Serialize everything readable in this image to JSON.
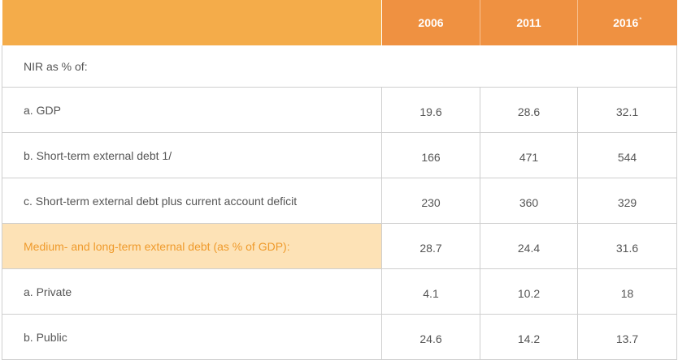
{
  "table": {
    "columns": [
      "2006",
      "2011",
      "2016"
    ],
    "last_column_footnote_mark": "*",
    "section_heading": "NIR as % of:",
    "rows": [
      {
        "label": "a. GDP",
        "values": [
          "19.6",
          "28.6",
          "32.1"
        ]
      },
      {
        "label": "b. Short-term external debt 1/",
        "values": [
          "166",
          "471",
          "544"
        ]
      },
      {
        "label": "c. Short-term external debt plus current account deficit",
        "values": [
          "230",
          "360",
          "329"
        ]
      },
      {
        "label": "Medium- and long-term external debt (as % of GDP):",
        "values": [
          "28.7",
          "24.4",
          "31.6"
        ],
        "highlight": true
      },
      {
        "label": "a. Private",
        "values": [
          "4.1",
          "10.2",
          "18"
        ]
      },
      {
        "label": "b. Public",
        "values": [
          "24.6",
          "14.2",
          "13.7"
        ]
      }
    ]
  },
  "colors": {
    "header_left": "#f4ac4a",
    "header_years": "#ef9141",
    "highlight_bg": "#fde2b6",
    "highlight_text": "#ef9a2b",
    "body_text": "#555555",
    "grid": "#cfcfcf"
  }
}
